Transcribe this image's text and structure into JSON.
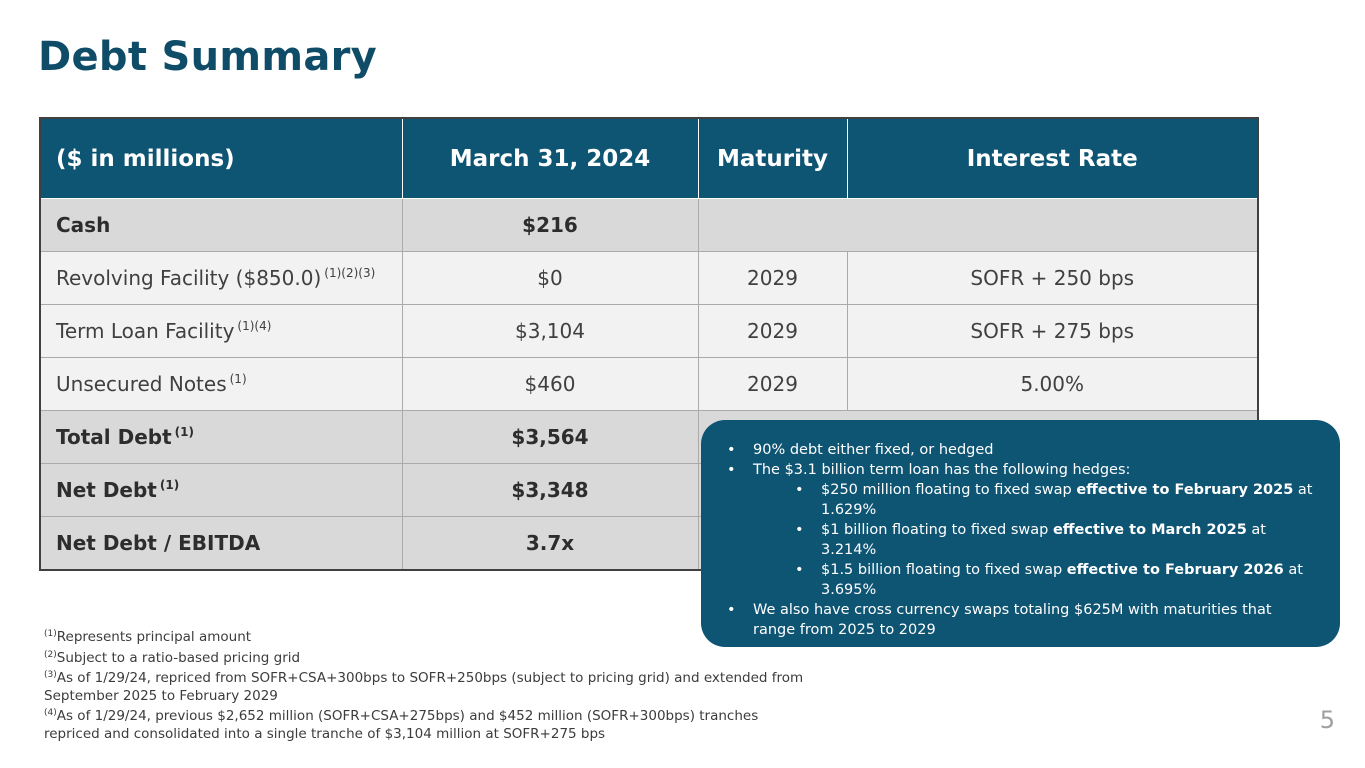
{
  "title": "Debt Summary",
  "table": {
    "headers": [
      "($ in millions)",
      "March 31, 2024",
      "Maturity",
      "Interest Rate"
    ],
    "rows": {
      "cash": {
        "label": "Cash",
        "amount": "$216"
      },
      "revolver": {
        "label": "Revolving Facility ($850.0)",
        "fn": "(1)(2)(3)",
        "amount": "$0",
        "maturity": "2029",
        "rate": "SOFR + 250 bps"
      },
      "term_loan": {
        "label": "Term Loan Facility",
        "fn": "(1)(4)",
        "amount": "$3,104",
        "maturity": "2029",
        "rate": "SOFR + 275 bps"
      },
      "unsecured": {
        "label": "Unsecured Notes",
        "fn": "(1)",
        "amount": "$460",
        "maturity": "2029",
        "rate": "5.00%"
      },
      "total_debt": {
        "label": "Total Debt",
        "fn": "(1)",
        "amount": "$3,564"
      },
      "net_debt": {
        "label": "Net Debt",
        "fn": "(1)",
        "amount": "$3,348"
      },
      "net_debt_ebitda": {
        "label": "Net Debt / EBITDA",
        "amount": "3.7x"
      }
    }
  },
  "callout": {
    "b1": "90% debt either fixed, or hedged",
    "b2": "The $3.1 billion term loan has the following hedges:",
    "s1_pre": "$250 million floating to fixed swap ",
    "s1_bold": "effective to February 2025",
    "s1_post": " at 1.629%",
    "s2_pre": "$1 billion floating to fixed swap ",
    "s2_bold": "effective to March 2025",
    "s2_post": " at 3.214%",
    "s3_pre": "$1.5 billion floating to fixed swap ",
    "s3_bold": "effective to February 2026",
    "s3_post": " at 3.695%",
    "b3": "We also have cross currency swaps totaling $625M with maturities that range from 2025 to 2029"
  },
  "footnotes": [
    {
      "mark": "(1)",
      "text": "Represents principal amount"
    },
    {
      "mark": "(2)",
      "text": "Subject to a ratio-based pricing grid"
    },
    {
      "mark": "(3)",
      "text": "As of 1/29/24, repriced from SOFR+CSA+300bps to SOFR+250bps (subject to pricing grid) and extended from September 2025 to February 2029"
    },
    {
      "mark": "(4)",
      "text": "As of 1/29/24, previous $2,652 million (SOFR+CSA+275bps) and $452 million (SOFR+300bps) tranches repriced and consolidated into a single tranche of $3,104 million at SOFR+275 bps"
    }
  ],
  "page_number": "5",
  "colors": {
    "brand": "#0e5473",
    "title": "#0f4c67",
    "row_bold": "#d9d9d9",
    "row_plain": "#f2f2f2"
  }
}
